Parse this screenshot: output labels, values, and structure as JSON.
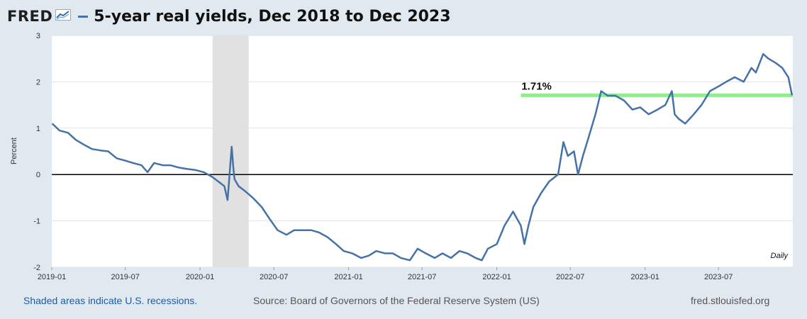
{
  "header": {
    "logo_text": "FRED",
    "title": "5-year real yields, Dec 2018 to Dec 2023"
  },
  "footer": {
    "recession_note": "Shaded areas indicate U.S. recessions.",
    "source": "Source: Board of Governors of the Federal Reserve System (US)",
    "site": "fred.stlouisfed.org"
  },
  "colors": {
    "series": "#4572a7",
    "threshold": "#90ee90",
    "recession": "#e1e1e1",
    "zero_line": "#000000",
    "background": "#e1e9f0"
  },
  "chart_data": {
    "type": "line",
    "ylabel": "Percent",
    "frequency_note": "Daily",
    "ylim": [
      -2,
      3
    ],
    "yticks": [
      "3",
      "2",
      "1",
      "0",
      "-1",
      "-2"
    ],
    "xlim": [
      "2019-01-01",
      "2023-12-31"
    ],
    "xticks": [
      "2019-01",
      "2019-07",
      "2020-01",
      "2020-07",
      "2021-01",
      "2021-07",
      "2022-01",
      "2022-07",
      "2023-01",
      "2023-07"
    ],
    "grid": true,
    "recession_shading": {
      "start": "2020-02-01",
      "end": "2020-04-30"
    },
    "reference_line": {
      "value": 1.71,
      "label": "1.71%",
      "start": "2022-03-01",
      "end": "2023-12-31"
    },
    "zero_line": 0,
    "series": [
      {
        "x": [
          "2019-01-02",
          "2019-01-20",
          "2019-02-10",
          "2019-03-01",
          "2019-03-20",
          "2019-04-10",
          "2019-05-01",
          "2019-05-20",
          "2019-06-10",
          "2019-07-01",
          "2019-07-20",
          "2019-08-10",
          "2019-08-25",
          "2019-09-10",
          "2019-10-01",
          "2019-10-20",
          "2019-11-10",
          "2019-12-01",
          "2019-12-20",
          "2020-01-10",
          "2020-01-31",
          "2020-02-15",
          "2020-03-01",
          "2020-03-09",
          "2020-03-12",
          "2020-03-19",
          "2020-03-23",
          "2020-03-26",
          "2020-04-05",
          "2020-04-20",
          "2020-05-10",
          "2020-06-01",
          "2020-06-20",
          "2020-07-10",
          "2020-08-01",
          "2020-08-20",
          "2020-09-10",
          "2020-10-01",
          "2020-10-20",
          "2020-11-10",
          "2020-12-01",
          "2020-12-20",
          "2021-01-10",
          "2021-02-01",
          "2021-02-20",
          "2021-03-10",
          "2021-04-01",
          "2021-04-20",
          "2021-05-10",
          "2021-06-01",
          "2021-06-20",
          "2021-07-10",
          "2021-08-01",
          "2021-08-20",
          "2021-09-10",
          "2021-10-01",
          "2021-10-20",
          "2021-11-10",
          "2021-11-25",
          "2021-12-10",
          "2022-01-01",
          "2022-01-20",
          "2022-02-10",
          "2022-03-01",
          "2022-03-10",
          "2022-03-20",
          "2022-04-01",
          "2022-04-20",
          "2022-05-10",
          "2022-06-01",
          "2022-06-14",
          "2022-06-25",
          "2022-07-10",
          "2022-07-20",
          "2022-08-01",
          "2022-08-15",
          "2022-09-01",
          "2022-09-15",
          "2022-10-01",
          "2022-10-20",
          "2022-11-10",
          "2022-12-01",
          "2022-12-20",
          "2023-01-10",
          "2023-02-01",
          "2023-02-20",
          "2023-03-08",
          "2023-03-15",
          "2023-03-25",
          "2023-04-10",
          "2023-05-01",
          "2023-05-20",
          "2023-06-10",
          "2023-07-01",
          "2023-07-20",
          "2023-08-10",
          "2023-09-01",
          "2023-09-20",
          "2023-10-01",
          "2023-10-19",
          "2023-11-01",
          "2023-11-20",
          "2023-12-05",
          "2023-12-20",
          "2023-12-29"
        ],
        "y": [
          1.1,
          0.95,
          0.9,
          0.75,
          0.65,
          0.55,
          0.52,
          0.5,
          0.35,
          0.3,
          0.25,
          0.2,
          0.05,
          0.25,
          0.2,
          0.2,
          0.15,
          0.12,
          0.1,
          0.05,
          -0.05,
          -0.15,
          -0.25,
          -0.55,
          -0.2,
          0.6,
          0.15,
          -0.1,
          -0.25,
          -0.35,
          -0.5,
          -0.7,
          -0.95,
          -1.2,
          -1.3,
          -1.2,
          -1.2,
          -1.2,
          -1.25,
          -1.35,
          -1.5,
          -1.65,
          -1.7,
          -1.8,
          -1.75,
          -1.65,
          -1.7,
          -1.7,
          -1.8,
          -1.85,
          -1.6,
          -1.7,
          -1.8,
          -1.7,
          -1.8,
          -1.65,
          -1.7,
          -1.8,
          -1.85,
          -1.6,
          -1.5,
          -1.1,
          -0.8,
          -1.1,
          -1.5,
          -1.1,
          -0.7,
          -0.4,
          -0.15,
          0.0,
          0.7,
          0.4,
          0.5,
          0.0,
          0.4,
          0.8,
          1.3,
          1.8,
          1.7,
          1.7,
          1.6,
          1.4,
          1.45,
          1.3,
          1.4,
          1.5,
          1.8,
          1.3,
          1.2,
          1.1,
          1.3,
          1.5,
          1.8,
          1.9,
          2.0,
          2.1,
          2.0,
          2.3,
          2.2,
          2.6,
          2.5,
          2.4,
          2.3,
          2.1,
          1.71
        ]
      }
    ]
  }
}
